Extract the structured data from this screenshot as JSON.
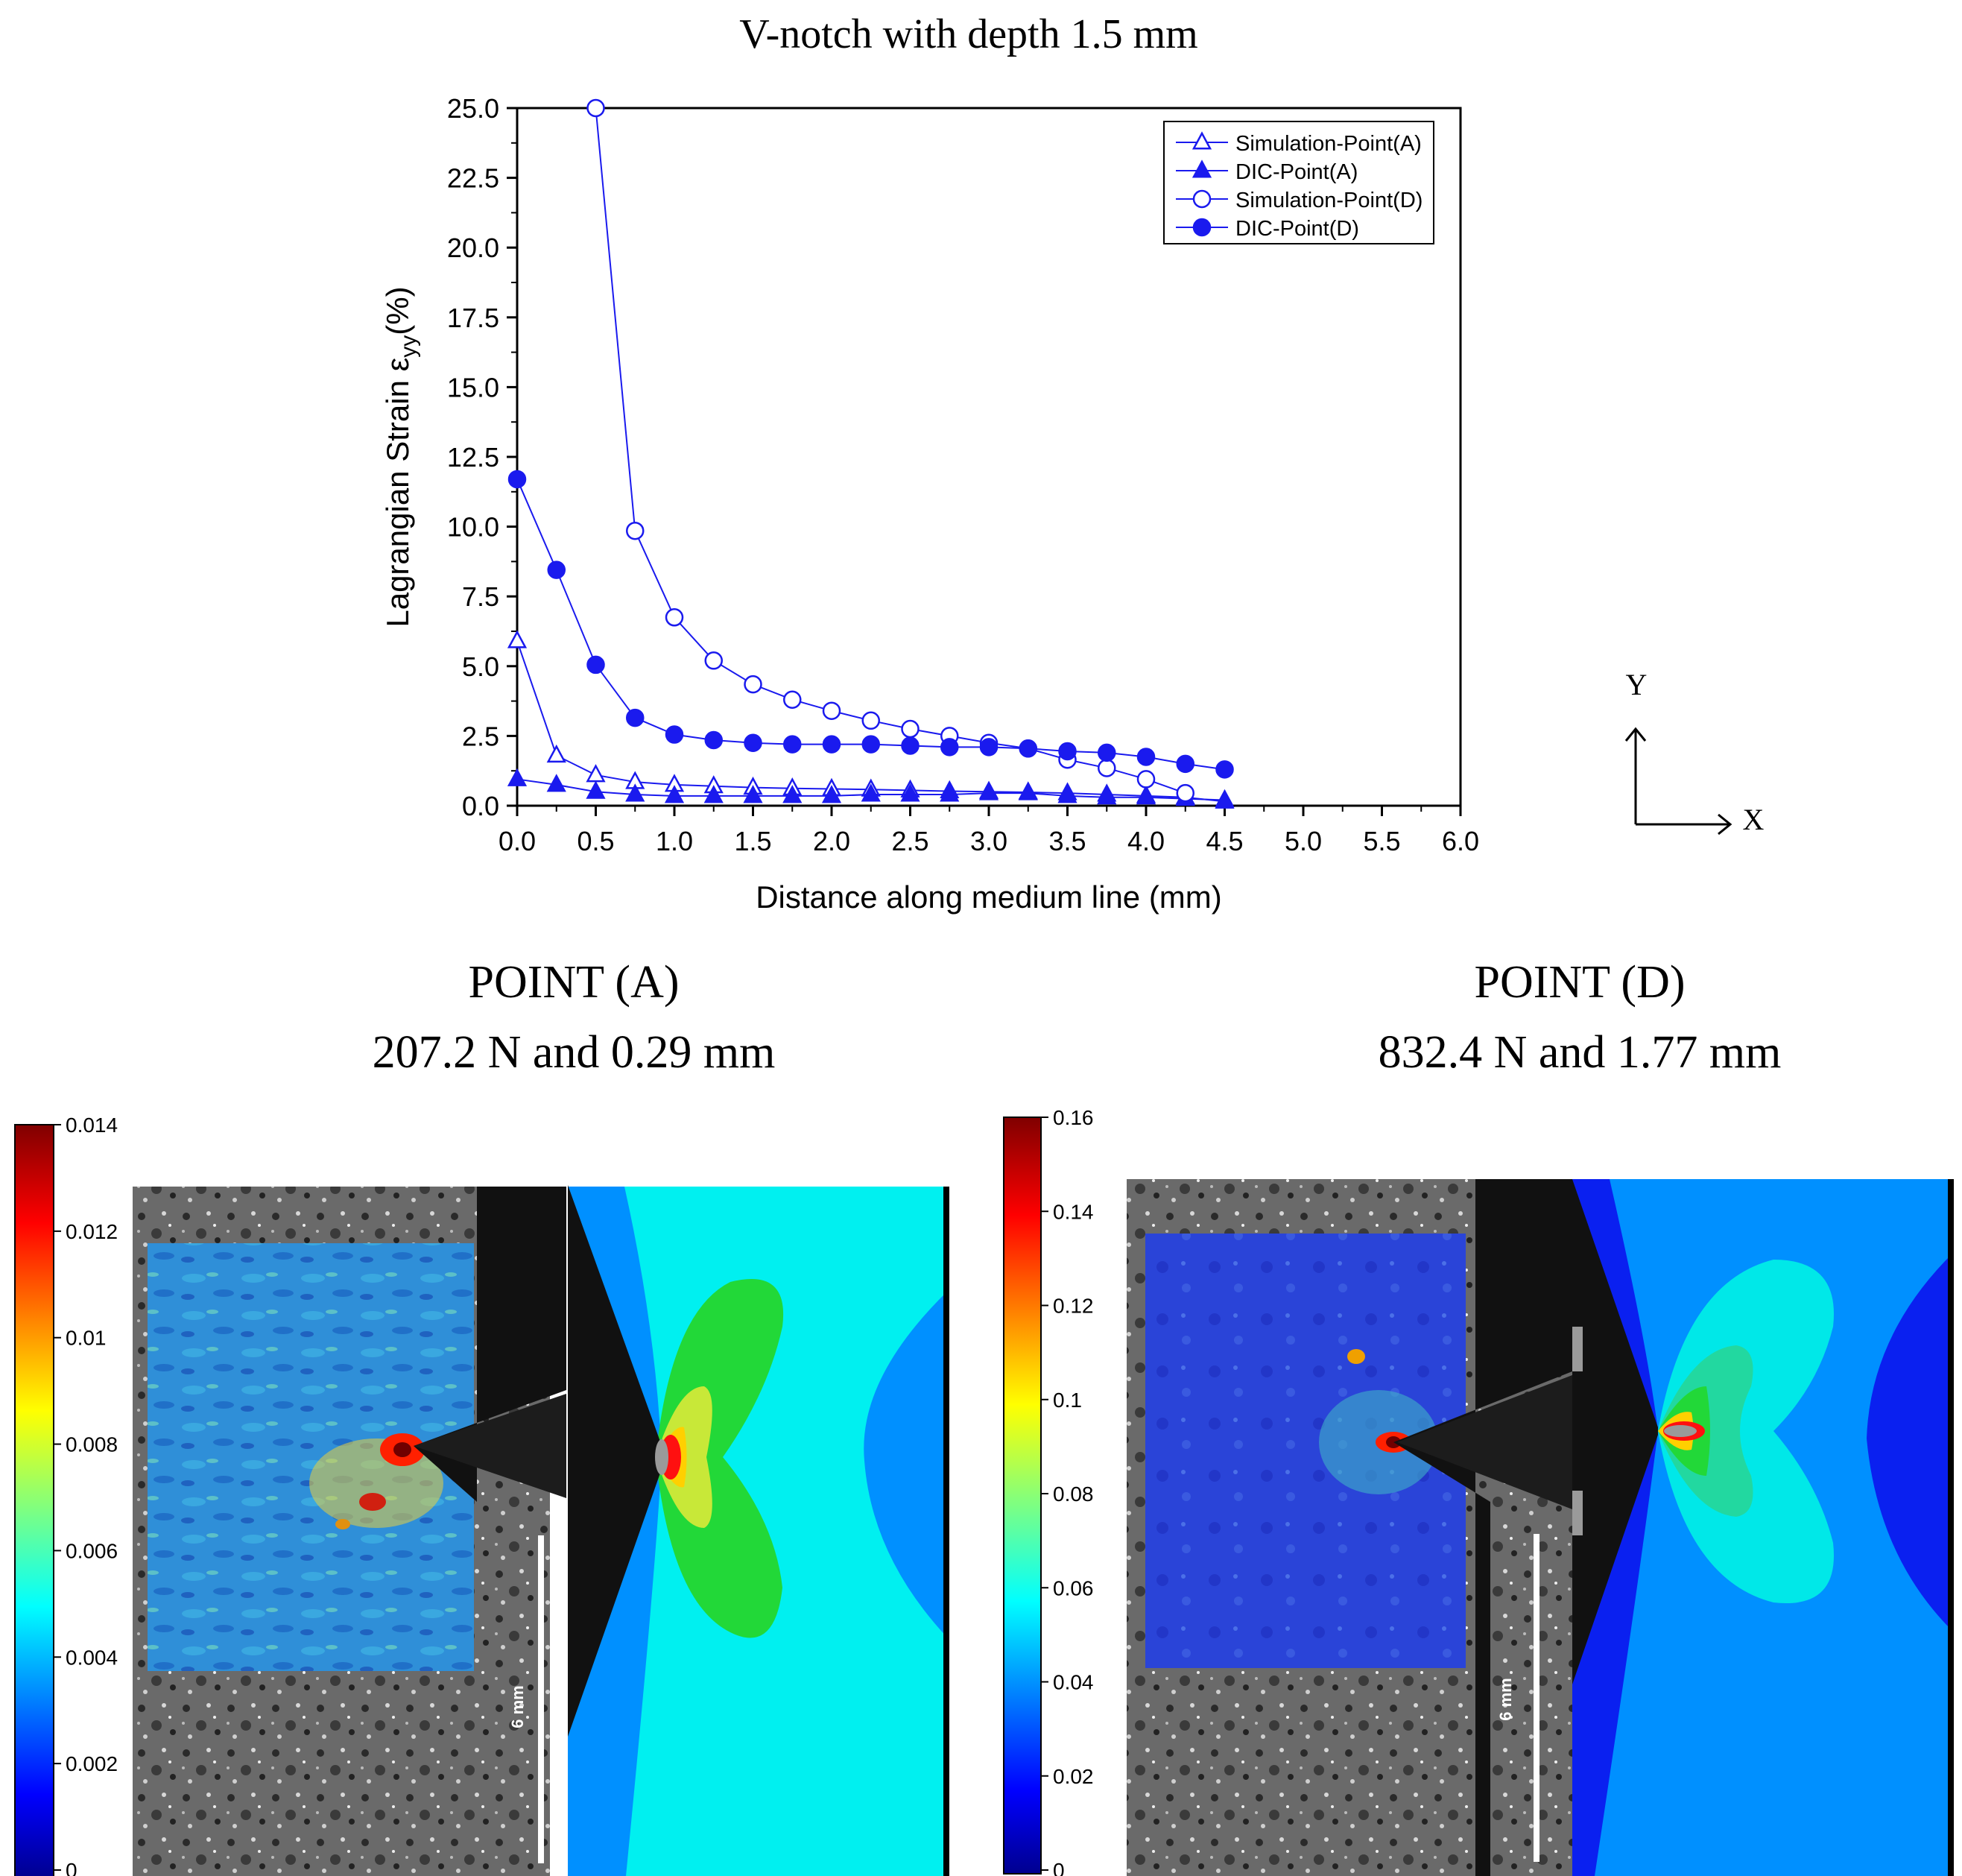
{
  "figure_title": "V-notch with depth 1.5 mm",
  "chart_data": {
    "type": "line",
    "title": "",
    "xlabel": "Distance along medium line (mm)",
    "ylabel": "Lagrangian Strain ε",
    "ylabel_sub": "yy",
    "ylabel_suffix": "(%)",
    "xlim": [
      0,
      6
    ],
    "ylim": [
      0,
      25
    ],
    "x_ticks": [
      "0.0",
      "0.5",
      "1.0",
      "1.5",
      "2.0",
      "2.5",
      "3.0",
      "3.5",
      "4.0",
      "4.5",
      "5.0",
      "5.5",
      "6.0"
    ],
    "y_ticks": [
      "0.0",
      "2.5",
      "5.0",
      "7.5",
      "10.0",
      "12.5",
      "15.0",
      "17.5",
      "20.0",
      "22.5",
      "25.0"
    ],
    "legend_position": "top-right",
    "series_color": "#1a1aee",
    "series": [
      {
        "name": "Simulation-Point(A)",
        "marker": "triangle-open",
        "x": [
          0,
          0.25,
          0.5,
          0.75,
          1.0,
          1.25,
          1.5,
          1.75,
          2.0,
          2.25,
          2.5,
          2.75,
          3.0,
          3.25,
          3.5,
          3.75,
          4.0,
          4.25,
          4.5
        ],
        "y": [
          5.9,
          1.8,
          1.1,
          0.85,
          0.75,
          0.7,
          0.65,
          0.62,
          0.6,
          0.58,
          0.55,
          0.52,
          0.5,
          0.48,
          0.45,
          0.4,
          0.35,
          0.3,
          0.15
        ]
      },
      {
        "name": "DIC-Point(A)",
        "marker": "triangle-filled",
        "x": [
          0,
          0.25,
          0.5,
          0.75,
          1.0,
          1.25,
          1.5,
          1.75,
          2.0,
          2.25,
          2.5,
          2.75,
          3.0,
          3.25,
          3.5,
          3.75,
          4.0,
          4.25,
          4.5
        ],
        "y": [
          0.95,
          0.75,
          0.5,
          0.4,
          0.35,
          0.35,
          0.35,
          0.35,
          0.35,
          0.4,
          0.4,
          0.4,
          0.45,
          0.45,
          0.35,
          0.3,
          0.3,
          0.25,
          0.2
        ]
      },
      {
        "name": "Simulation-Point(D)",
        "marker": "circle-open",
        "x": [
          0.5,
          0.75,
          1.0,
          1.25,
          1.5,
          1.75,
          2.0,
          2.25,
          2.5,
          2.75,
          3.0,
          3.25,
          3.5,
          3.75,
          4.0,
          4.25
        ],
        "y": [
          25.0,
          9.85,
          6.75,
          5.2,
          4.35,
          3.8,
          3.4,
          3.05,
          2.75,
          2.5,
          2.25,
          2.05,
          1.65,
          1.35,
          0.95,
          0.45
        ]
      },
      {
        "name": "DIC-Point(D)",
        "marker": "circle-filled",
        "x": [
          0,
          0.25,
          0.5,
          0.75,
          1.0,
          1.25,
          1.5,
          1.75,
          2.0,
          2.25,
          2.5,
          2.75,
          3.0,
          3.25,
          3.5,
          3.75,
          4.0,
          4.25,
          4.5
        ],
        "y": [
          11.7,
          8.45,
          5.05,
          3.15,
          2.55,
          2.35,
          2.25,
          2.2,
          2.2,
          2.2,
          2.15,
          2.1,
          2.1,
          2.05,
          1.95,
          1.9,
          1.75,
          1.5,
          1.3
        ]
      }
    ]
  },
  "axes_indicator": {
    "y_label": "Y",
    "x_label": "X"
  },
  "panels": [
    {
      "title": "POINT (A)",
      "subtitle": "207.2 N and 0.29 mm",
      "colorbar_ticks": [
        "0.014",
        "0.012",
        "0.01",
        "0.008",
        "0.006",
        "0.004",
        "0.002",
        "0"
      ],
      "colorbar_range": [
        0,
        0.014
      ],
      "scale_bar_label": "6 mm"
    },
    {
      "title": "POINT (D)",
      "subtitle": "832.4 N and 1.77 mm",
      "colorbar_ticks": [
        "0.16",
        "0.14",
        "0.12",
        "0.1",
        "0.08",
        "0.06",
        "0.04",
        "0.02",
        "0"
      ],
      "colorbar_range": [
        0,
        0.16
      ],
      "scale_bar_label": "6 mm"
    }
  ]
}
